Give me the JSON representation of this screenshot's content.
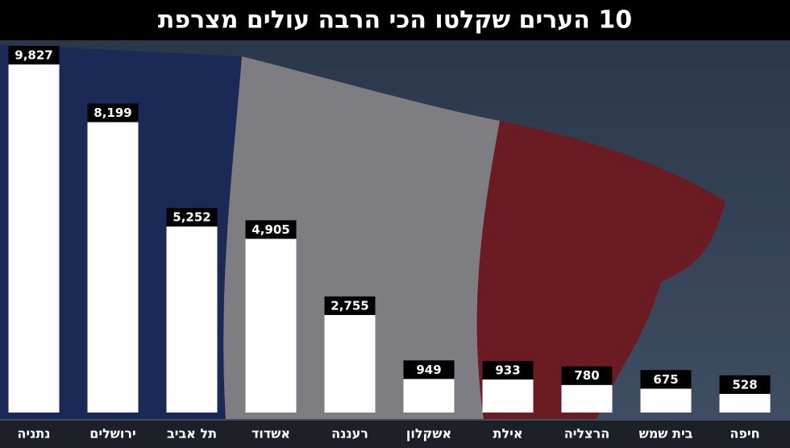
{
  "chart_data": {
    "type": "bar",
    "title": "10 הערים שקלטו הכי הרבה עולים מצרפת",
    "categories": [
      "נתניה",
      "ירושלים",
      "תל אביב",
      "אשדוד",
      "רעננה",
      "אשקלון",
      "אילת",
      "הרצליה",
      "בית שמש",
      "חיפה"
    ],
    "values": [
      9827,
      8199,
      5252,
      4905,
      2755,
      949,
      933,
      780,
      675,
      528
    ],
    "value_labels": [
      "9,827",
      "8,199",
      "5,252",
      "4,905",
      "2,755",
      "949",
      "933",
      "780",
      "675",
      "528"
    ],
    "color": "#ffffff"
  }
}
